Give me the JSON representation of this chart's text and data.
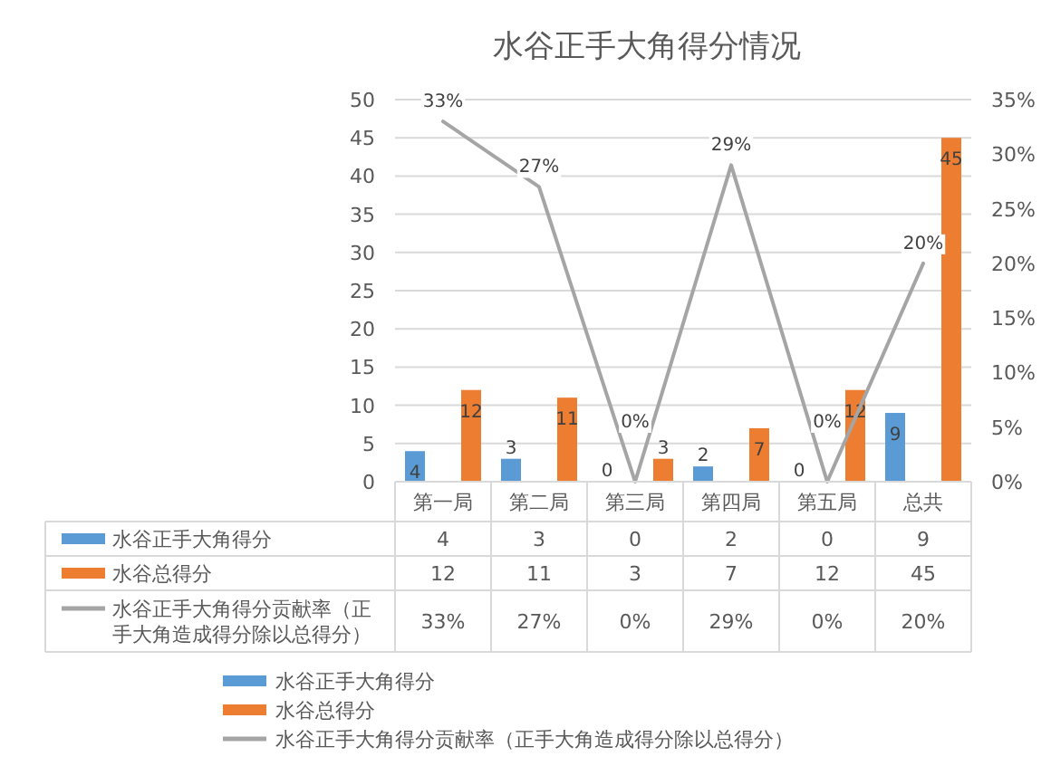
{
  "chart_data": {
    "type": "bar",
    "title": "水谷正手大角得分情况",
    "categories": [
      "第一局",
      "第二局",
      "第三局",
      "第四局",
      "第五局",
      "总共"
    ],
    "series": [
      {
        "name": "水谷正手大角得分",
        "color": "#5b9bd5",
        "values": [
          4,
          3,
          0,
          2,
          0,
          9
        ],
        "value_labels": [
          "4",
          "3",
          "0",
          "2",
          "0",
          "9"
        ]
      },
      {
        "name": "水谷总得分",
        "color": "#ed7d31",
        "values": [
          12,
          11,
          3,
          7,
          12,
          45
        ],
        "value_labels": [
          "12",
          "11",
          "3",
          "7",
          "12",
          "45"
        ]
      },
      {
        "name": "水谷正手大角得分贡献率（正手大角造成得分除以总得分）",
        "type": "line",
        "axis": "y2",
        "color": "#a5a5a5",
        "values": [
          33,
          27,
          0,
          29,
          0,
          20
        ],
        "value_labels": [
          "33%",
          "27%",
          "0%",
          "29%",
          "0%",
          "20%"
        ]
      }
    ],
    "ylim": [
      0,
      50
    ],
    "yticks": [
      0,
      5,
      10,
      15,
      20,
      25,
      30,
      35,
      40,
      45,
      50
    ],
    "y2lim": [
      0,
      35
    ],
    "y2ticks": [
      {
        "value": 0,
        "label": "0%"
      },
      {
        "value": 5,
        "label": "5%"
      },
      {
        "value": 10,
        "label": "10%"
      },
      {
        "value": 15,
        "label": "15%"
      },
      {
        "value": 20,
        "label": "20%"
      },
      {
        "value": 25,
        "label": "25%"
      },
      {
        "value": 30,
        "label": "30%"
      },
      {
        "value": 35,
        "label": "35%"
      }
    ],
    "grid": "y",
    "legend": "bottom"
  }
}
